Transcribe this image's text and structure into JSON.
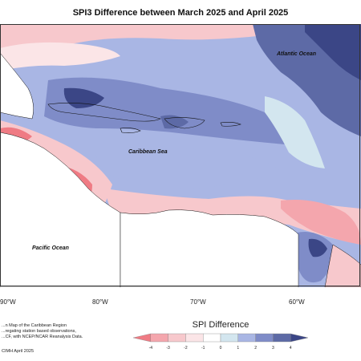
{
  "title": "SPI3 Difference between March 2025 and April 2025",
  "ocean_labels": {
    "atlantic": "Atlantic Ocean",
    "caribbean": "Caribbean Sea",
    "pacific": "Pacific Ocean"
  },
  "lon_labels": [
    "90°W",
    "80°W",
    "70°W",
    "60°W"
  ],
  "credit_lines": [
    "...n Map of the Caribbean Region",
    "...regating station based observations,",
    "...CF, with NCEP/NCAR Reanalysis Data."
  ],
  "credit_footer": "CIMH April 2025",
  "legend": {
    "title": "SPI Difference",
    "ticks": [
      "-4",
      "-3",
      "-2",
      "-1",
      "0",
      "1",
      "2",
      "3",
      "4"
    ],
    "colors": [
      "#ef7b84",
      "#f4a6ad",
      "#f7c8cc",
      "#fbe5e7",
      "#ffffff",
      "#d3e6ef",
      "#a9b6e4",
      "#7f8cc8",
      "#5d6aa6",
      "#3b4686"
    ]
  },
  "palette": {
    "strong_pos": "#3b4686",
    "pos": "#5d6aa6",
    "mid_pos": "#7f8cc8",
    "light_pos": "#a9b6e4",
    "near_zero_pos": "#d3e6ef",
    "near_zero_neg": "#fbe5e7",
    "light_neg": "#f7c8cc",
    "neg": "#f4a6ad",
    "strong_neg": "#ef7b84",
    "land": "#ffffff"
  }
}
